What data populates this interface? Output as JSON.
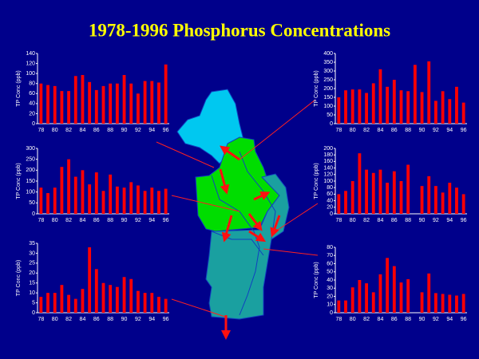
{
  "title": "1978-1996 Phosphorus Concentrations",
  "chart_data": [
    {
      "type": "bar",
      "ylabel": "TP Conc (ppb)",
      "color": "#ff0000",
      "categories": [
        "78",
        null,
        "80",
        null,
        "82",
        null,
        "84",
        null,
        "86",
        null,
        "88",
        null,
        "90",
        null,
        "92",
        null,
        "94",
        null,
        "96"
      ],
      "values": [
        80,
        77,
        75,
        65,
        65,
        95,
        97,
        83,
        67,
        75,
        80,
        80,
        97,
        80,
        60,
        85,
        85,
        82,
        118
      ],
      "ylim": [
        0,
        140
      ],
      "yticks": [
        0,
        20,
        40,
        60,
        80,
        100,
        120,
        140
      ]
    },
    {
      "type": "bar",
      "ylabel": "TP Conc (ppb)",
      "color": "#ff0000",
      "categories": [
        "78",
        null,
        "80",
        null,
        "82",
        null,
        "84",
        null,
        "86",
        null,
        "88",
        null,
        "90",
        null,
        "92",
        null,
        "94",
        null,
        "96"
      ],
      "values": [
        150,
        190,
        195,
        195,
        175,
        230,
        310,
        210,
        250,
        190,
        185,
        335,
        180,
        355,
        130,
        185,
        140,
        210,
        120
      ],
      "ylim": [
        0,
        400
      ],
      "yticks": [
        0,
        50,
        100,
        150,
        200,
        250,
        300,
        350,
        400
      ]
    },
    {
      "type": "bar",
      "ylabel": "TP Conc (ppb)",
      "color": "#ff0000",
      "categories": [
        "78",
        null,
        "80",
        null,
        "82",
        null,
        "84",
        null,
        "86",
        null,
        "88",
        null,
        "90",
        null,
        "92",
        null,
        "94",
        null,
        "96"
      ],
      "values": [
        120,
        95,
        120,
        215,
        250,
        170,
        200,
        135,
        190,
        105,
        180,
        125,
        120,
        145,
        130,
        105,
        120,
        105,
        115
      ],
      "ylim": [
        0,
        300
      ],
      "yticks": [
        0,
        50,
        100,
        150,
        200,
        250,
        300
      ]
    },
    {
      "type": "bar",
      "ylabel": "TP Conc (ppb)",
      "color": "#ff0000",
      "categories": [
        "78",
        null,
        "80",
        null,
        "82",
        null,
        "84",
        null,
        "86",
        null,
        "88",
        null,
        "90",
        null,
        "92",
        null,
        "94",
        null,
        "96"
      ],
      "values": [
        60,
        70,
        100,
        185,
        135,
        125,
        135,
        95,
        130,
        100,
        150,
        null,
        85,
        115,
        85,
        65,
        95,
        80,
        60
      ],
      "ylim": [
        0,
        200
      ],
      "yticks": [
        0,
        20,
        40,
        60,
        80,
        100,
        120,
        140,
        160,
        180,
        200
      ]
    },
    {
      "type": "bar",
      "ylabel": "TP Conc (ppb)",
      "color": "#ff0000",
      "categories": [
        "78",
        null,
        "80",
        null,
        "82",
        null,
        "84",
        null,
        "86",
        null,
        "88",
        null,
        "90",
        null,
        "92",
        null,
        "94",
        null,
        "96"
      ],
      "values": [
        8,
        10,
        10,
        14,
        9,
        7,
        12,
        33,
        22,
        15,
        14,
        13,
        18,
        17,
        11,
        10,
        10,
        8,
        7
      ],
      "ylim": [
        0,
        35
      ],
      "yticks": [
        0,
        5,
        10,
        15,
        20,
        25,
        30,
        35
      ]
    },
    {
      "type": "bar",
      "ylabel": "TP Conc (ppb)",
      "color": "#ff0000",
      "categories": [
        "78",
        null,
        "80",
        null,
        "82",
        null,
        "84",
        null,
        "86",
        null,
        "88",
        null,
        "90",
        null,
        "92",
        null,
        "94",
        null,
        "96"
      ],
      "values": [
        15,
        15,
        31,
        40,
        36,
        25,
        47,
        67,
        57,
        37,
        41,
        null,
        25,
        48,
        24,
        23,
        22,
        21,
        23
      ],
      "ylim": [
        0,
        80
      ],
      "yticks": [
        0,
        10,
        20,
        30,
        40,
        50,
        60,
        70,
        80
      ]
    }
  ]
}
